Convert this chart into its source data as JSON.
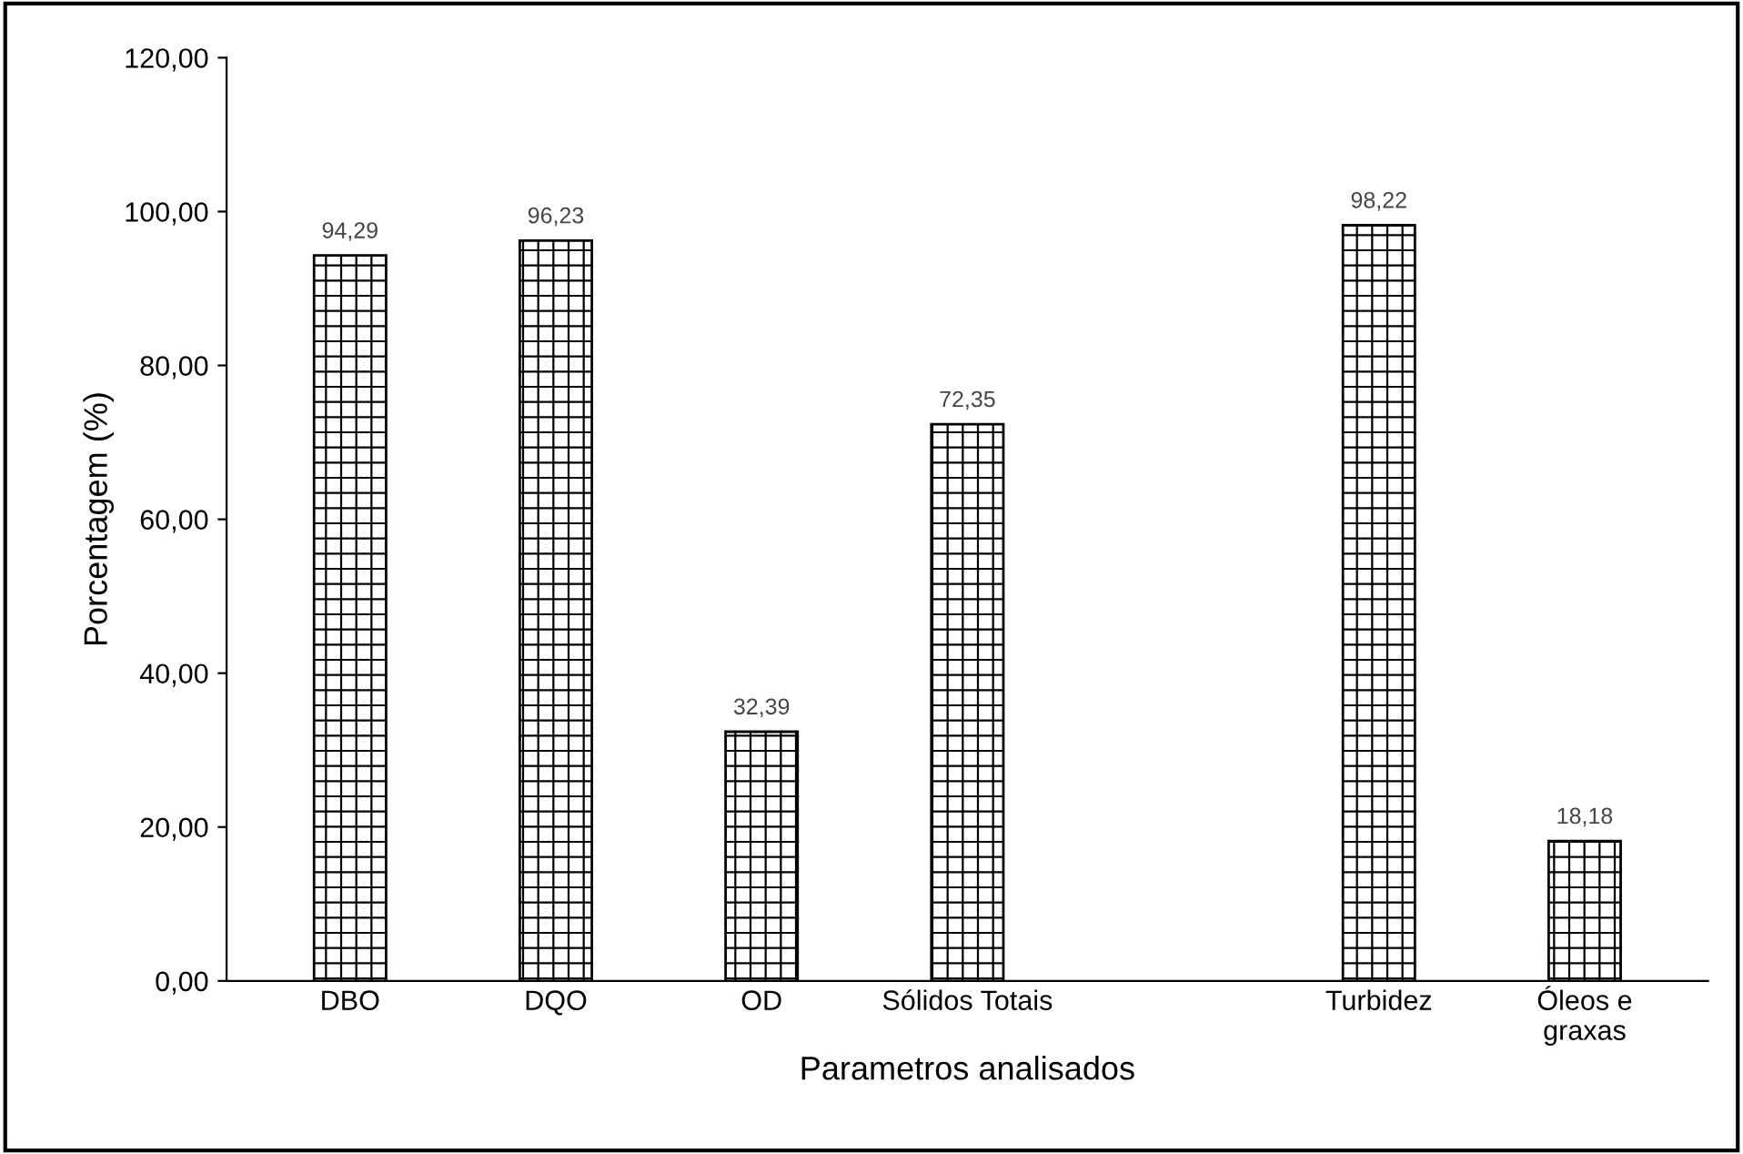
{
  "chart_data": {
    "type": "bar",
    "xlabel": "Parametros analisados",
    "ylabel": "Porcentagem (%)",
    "categories": [
      "DBO",
      "DQO",
      "OD",
      "Sólidos Totais",
      null,
      "Turbidez",
      "Óleos e\ngraxas"
    ],
    "values": [
      94.29,
      96.23,
      32.39,
      72.35,
      null,
      98.22,
      18.18
    ],
    "value_labels": [
      "94,29",
      "96,23",
      "32,39",
      "72,35",
      null,
      "98,22",
      "18,18"
    ],
    "color": "#000000",
    "ylim": [
      0,
      120
    ],
    "yticks": [
      {
        "value": 0,
        "label": "0,00"
      },
      {
        "value": 20,
        "label": "20,00"
      },
      {
        "value": 40,
        "label": "40,00"
      },
      {
        "value": 60,
        "label": "60,00"
      },
      {
        "value": 80,
        "label": "80,00"
      },
      {
        "value": 100,
        "label": "100,00"
      },
      {
        "value": 120,
        "label": "120,00"
      }
    ],
    "grid": false,
    "legend": false
  }
}
